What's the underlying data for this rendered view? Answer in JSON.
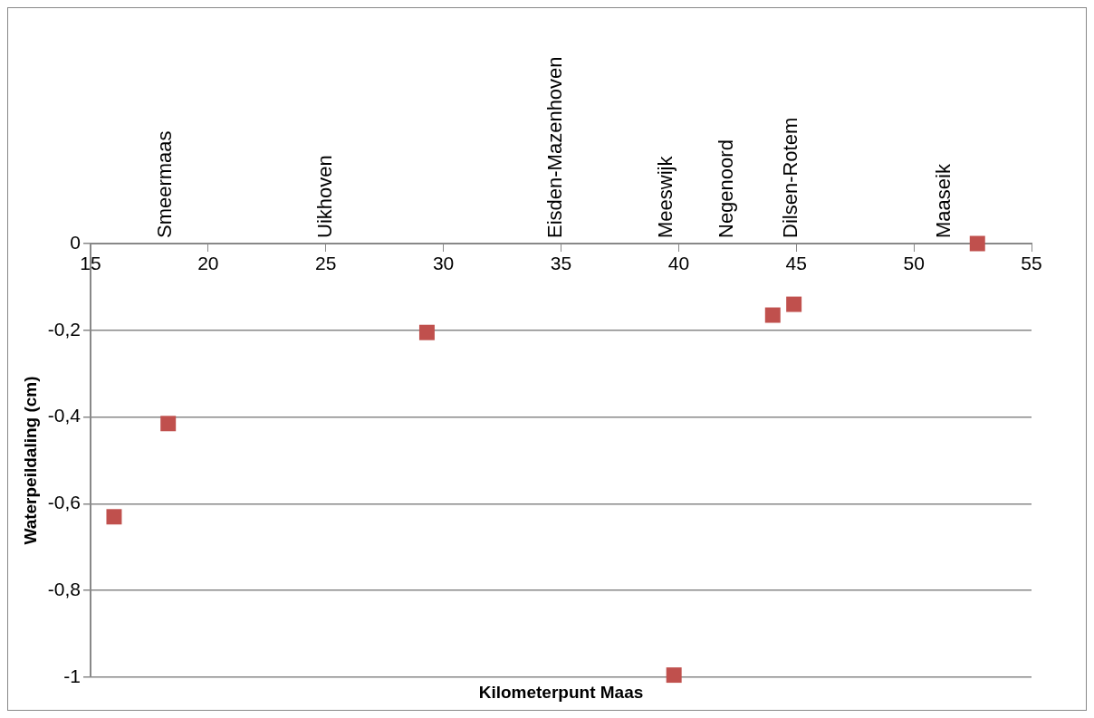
{
  "chart_data": {
    "type": "scatter",
    "xlabel": "Kilometerpunt Maas",
    "ylabel": "Waterpeildaling (cm)",
    "series": [
      {
        "color": "#c0504d",
        "x": [
          16.0,
          18.3,
          29.3,
          39.8,
          44.0,
          44.9,
          52.7
        ],
        "values": [
          -0.63,
          -0.415,
          -0.205,
          -0.995,
          -0.165,
          -0.14,
          0
        ]
      }
    ],
    "xlim": [
      15,
      55
    ],
    "xticks": [
      15,
      20,
      25,
      30,
      35,
      40,
      45,
      50,
      55
    ],
    "ylim": [
      -1,
      0
    ],
    "yticks": [
      {
        "value": -1,
        "label": "-1"
      },
      {
        "value": -0.8,
        "label": "-0,8"
      },
      {
        "value": -0.6,
        "label": "-0,6"
      },
      {
        "value": -0.4,
        "label": "-0,4"
      },
      {
        "value": -0.2,
        "label": "-0,2"
      },
      {
        "value": 0,
        "label": "0"
      }
    ],
    "grid": "y",
    "marker": "square",
    "legend": false,
    "annotations": [
      "Smeermaas",
      "Uikhoven",
      "Eisden-Mazenhoven",
      "Meeswijk",
      "Negenoord",
      "Dilsen-Rotem",
      "Maaseik"
    ]
  }
}
